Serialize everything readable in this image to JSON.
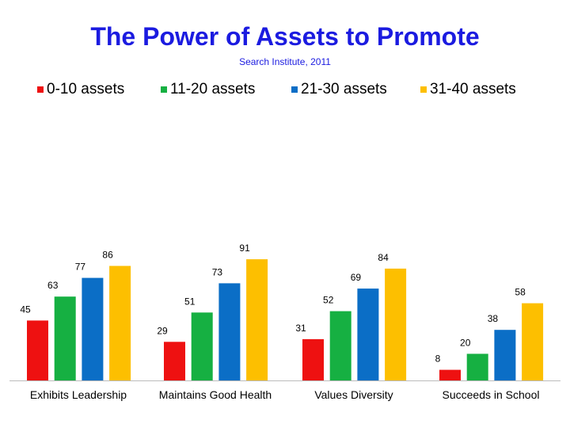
{
  "chart_data": {
    "type": "bar",
    "title": "The Power of Assets to Promote",
    "subtitle": "Search Institute, 2011",
    "categories": [
      "Exhibits Leadership",
      "Maintains Good Health",
      "Values Diversity",
      "Succeeds in School"
    ],
    "series": [
      {
        "name": "0-10 assets",
        "color": "#ee1111",
        "values": [
          45,
          29,
          31,
          8
        ]
      },
      {
        "name": "11-20 assets",
        "color": "#16b042",
        "values": [
          63,
          51,
          52,
          20
        ]
      },
      {
        "name": "21-30 assets",
        "color": "#0b6ec6",
        "values": [
          77,
          73,
          69,
          38
        ]
      },
      {
        "name": "31-40 assets",
        "color": "#fdbf00",
        "values": [
          86,
          91,
          84,
          58
        ]
      }
    ],
    "xlabel": "",
    "ylabel": "",
    "ylim": [
      0,
      100
    ],
    "grid": false,
    "legend": "top"
  }
}
